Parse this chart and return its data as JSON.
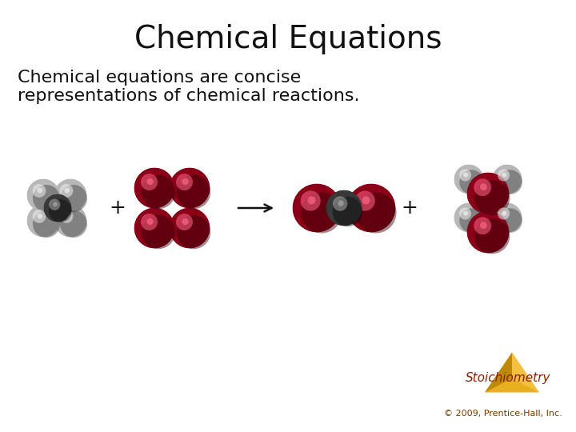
{
  "title": "Chemical Equations",
  "subtitle_line1": "Chemical equations are concise",
  "subtitle_line2": "representations of chemical reactions.",
  "copyright": "© 2009, Prentice-Hall, Inc.",
  "stoichiometry_label": "Stoichiometry",
  "background_color": "#ffffff",
  "title_fontsize": 28,
  "subtitle_fontsize": 16,
  "copyright_fontsize": 8,
  "stoich_fontsize": 11,
  "title_color": "#111111",
  "subtitle_color": "#111111",
  "copyright_color": "#7a3a00",
  "stoich_color": "#8b2000",
  "triangle_color_top": "#e8b820",
  "triangle_color_bot": "#c08000",
  "red_sphere_color": "#8b0018",
  "gray_sphere_color": "#b8b8b8",
  "black_sphere_color": "#222222",
  "plus_fontsize": 18,
  "arrow_color": "#111111"
}
